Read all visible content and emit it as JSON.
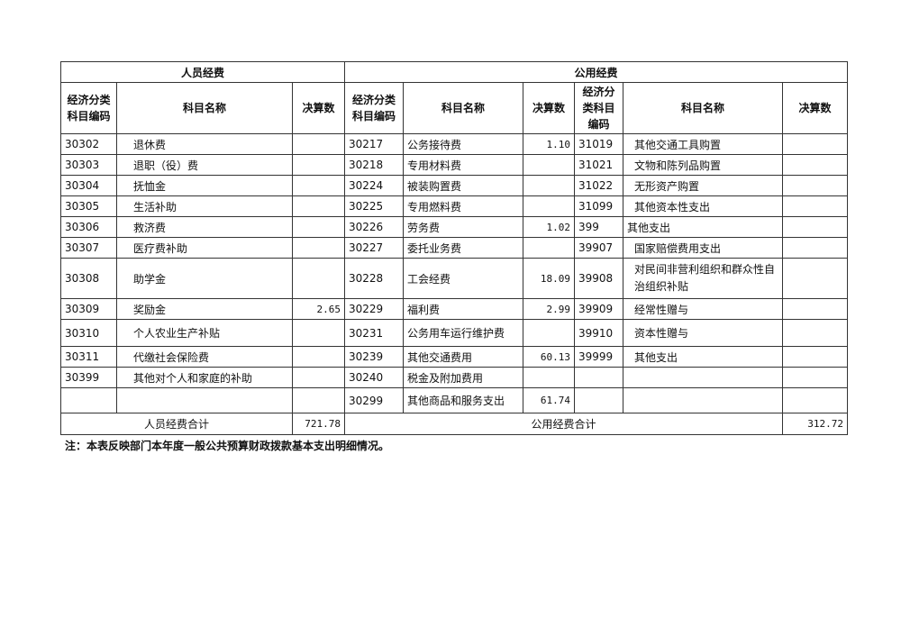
{
  "headers": {
    "personnel": "人员经费",
    "public": "公用经费",
    "code": "经济分类科目编码",
    "name": "科目名称",
    "amount": "决算数"
  },
  "rows": [
    {
      "c1": "30302",
      "n1": "退休费",
      "a1": "",
      "c2": "30217",
      "n2": "公务接待费",
      "a2": "1.10",
      "c3": "31019",
      "n3": "其他交通工具购置",
      "a3": ""
    },
    {
      "c1": "30303",
      "n1": "退职（役）费",
      "a1": "",
      "c2": "30218",
      "n2": "专用材料费",
      "a2": "",
      "c3": "31021",
      "n3": "文物和陈列品购置",
      "a3": ""
    },
    {
      "c1": "30304",
      "n1": "抚恤金",
      "a1": "",
      "c2": "30224",
      "n2": "被装购置费",
      "a2": "",
      "c3": "31022",
      "n3": "无形资产购置",
      "a3": ""
    },
    {
      "c1": "30305",
      "n1": "生活补助",
      "a1": "",
      "c2": "30225",
      "n2": "专用燃料费",
      "a2": "",
      "c3": "31099",
      "n3": "其他资本性支出",
      "a3": ""
    },
    {
      "c1": "30306",
      "n1": "救济费",
      "a1": "",
      "c2": "30226",
      "n2": "劳务费",
      "a2": "1.02",
      "c3": "399",
      "n3": "其他支出",
      "a3": ""
    },
    {
      "c1": "30307",
      "n1": "医疗费补助",
      "a1": "",
      "c2": "30227",
      "n2": "委托业务费",
      "a2": "",
      "c3": "39907",
      "n3": "国家赔偿费用支出",
      "a3": ""
    },
    {
      "c1": "30308",
      "n1": "助学金",
      "a1": "",
      "c2": "30228",
      "n2": "工会经费",
      "a2": "18.09",
      "c3": "39908",
      "n3": "对民间非营利组织和群众性自治组织补贴",
      "a3": ""
    },
    {
      "c1": "30309",
      "n1": "奖励金",
      "a1": "2.65",
      "c2": "30229",
      "n2": "福利费",
      "a2": "2.99",
      "c3": "39909",
      "n3": "经常性赠与",
      "a3": ""
    },
    {
      "c1": "30310",
      "n1": "个人农业生产补贴",
      "a1": "",
      "c2": "30231",
      "n2": "公务用车运行维护费",
      "a2": "",
      "c3": "39910",
      "n3": "资本性赠与",
      "a3": ""
    },
    {
      "c1": "30311",
      "n1": "代缴社会保险费",
      "a1": "",
      "c2": "30239",
      "n2": "其他交通费用",
      "a2": "60.13",
      "c3": "39999",
      "n3": "其他支出",
      "a3": ""
    },
    {
      "c1": "30399",
      "n1": "其他对个人和家庭的补助",
      "a1": "",
      "c2": "30240",
      "n2": "税金及附加费用",
      "a2": "",
      "c3": "",
      "n3": "",
      "a3": ""
    },
    {
      "c1": "",
      "n1": "",
      "a1": "",
      "c2": "30299",
      "n2": "其他商品和服务支出",
      "a2": "61.74",
      "c3": "",
      "n3": "",
      "a3": ""
    }
  ],
  "totals": {
    "personnel_label": "人员经费合计",
    "personnel_value": "721.78",
    "public_label": "公用经费合计",
    "public_value": "312.72"
  },
  "note": "注：本表反映部门本年度一般公共预算财政拨款基本支出明细情况。"
}
